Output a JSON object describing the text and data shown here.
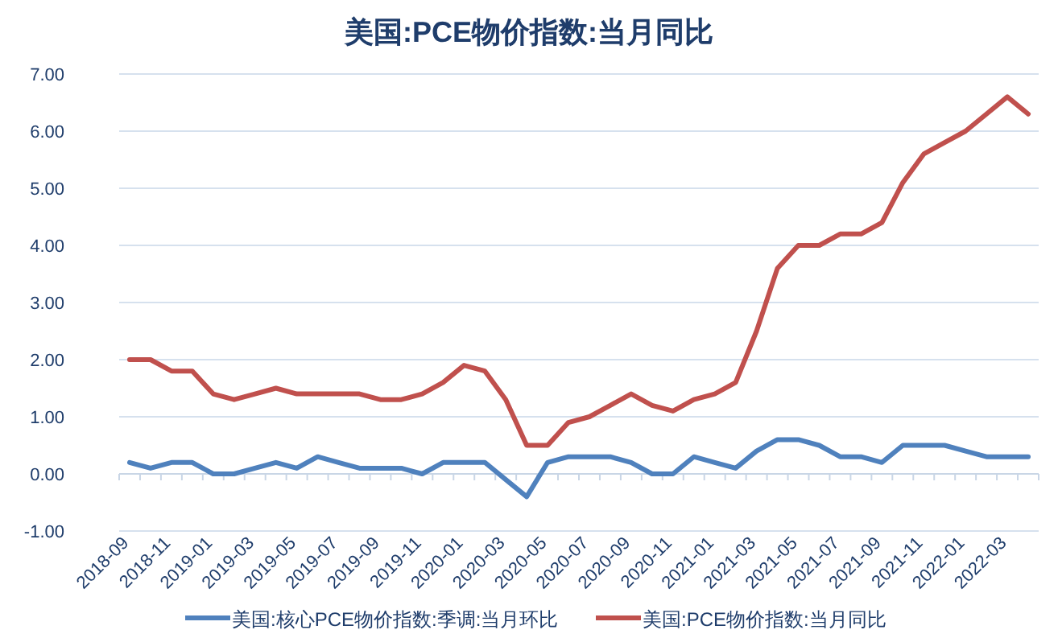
{
  "chart_data": {
    "type": "line",
    "title": "美国:PCE物价指数:当月同比",
    "categories": [
      "2018-09",
      null,
      "2018-11",
      null,
      "2019-01",
      null,
      "2019-03",
      null,
      "2019-05",
      null,
      "2019-07",
      null,
      "2019-09",
      null,
      "2019-11",
      null,
      "2020-01",
      null,
      "2020-03",
      null,
      "2020-05",
      null,
      "2020-07",
      null,
      "2020-09",
      null,
      "2020-11",
      null,
      "2021-01",
      null,
      "2021-03",
      null,
      "2021-05",
      null,
      "2021-07",
      null,
      "2021-09",
      null,
      "2021-11",
      null,
      "2022-01",
      null,
      "2022-03",
      null
    ],
    "series": [
      {
        "name": "美国:核心PCE物价指数:季调:当月环比",
        "color": "#4f81bd",
        "values": [
          0.2,
          0.1,
          0.2,
          0.2,
          0.0,
          0.0,
          0.1,
          0.2,
          0.1,
          0.3,
          0.2,
          0.1,
          0.1,
          0.1,
          0.0,
          0.2,
          0.2,
          0.2,
          -0.1,
          -0.4,
          0.2,
          0.3,
          0.3,
          0.3,
          0.2,
          0.0,
          0.0,
          0.3,
          0.2,
          0.1,
          0.4,
          0.6,
          0.6,
          0.5,
          0.3,
          0.3,
          0.2,
          0.5,
          0.5,
          0.5,
          0.4,
          0.3,
          0.3,
          0.3
        ]
      },
      {
        "name": "美国:PCE物价指数:当月同比",
        "color": "#c0504d",
        "values": [
          2.0,
          2.0,
          1.8,
          1.8,
          1.4,
          1.3,
          1.4,
          1.5,
          1.4,
          1.4,
          1.4,
          1.4,
          1.3,
          1.3,
          1.4,
          1.6,
          1.9,
          1.8,
          1.3,
          0.5,
          0.5,
          0.9,
          1.0,
          1.2,
          1.4,
          1.2,
          1.1,
          1.3,
          1.4,
          1.6,
          2.5,
          3.6,
          4.0,
          4.0,
          4.2,
          4.2,
          4.4,
          5.1,
          5.6,
          5.8,
          6.0,
          6.3,
          6.6,
          6.3
        ]
      }
    ],
    "ylim": [
      -1,
      7
    ],
    "yticks": [
      {
        "value": -1,
        "label": "-1.00"
      },
      {
        "value": 0,
        "label": "0.00"
      },
      {
        "value": 1,
        "label": "1.00"
      },
      {
        "value": 2,
        "label": "2.00"
      },
      {
        "value": 3,
        "label": "3.00"
      },
      {
        "value": 4,
        "label": "4.00"
      },
      {
        "value": 5,
        "label": "5.00"
      },
      {
        "value": 6,
        "label": "6.00"
      },
      {
        "value": 7,
        "label": "7.00"
      }
    ],
    "grid": "y",
    "legend": "bottom",
    "line_style": "solid",
    "marker": "none"
  }
}
